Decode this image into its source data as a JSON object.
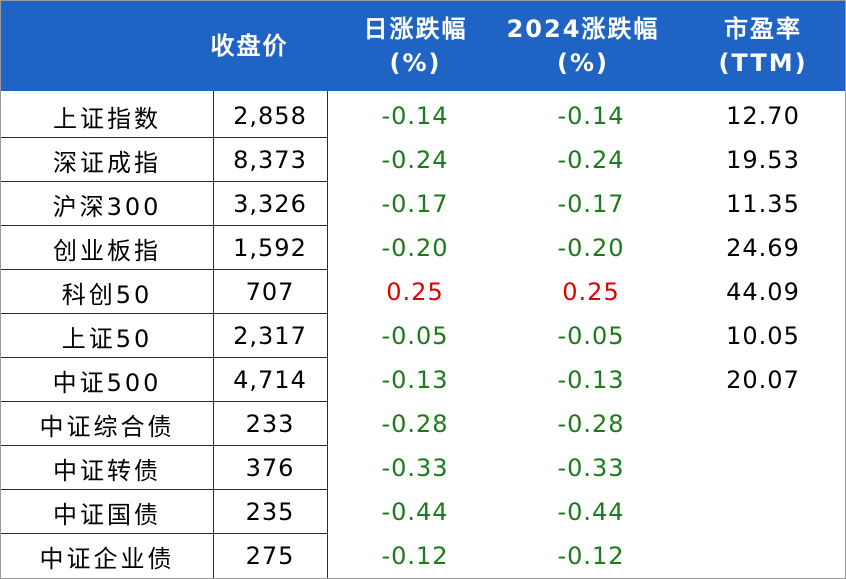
{
  "headers": {
    "close": [
      "收盘价"
    ],
    "daily": [
      "日涨跌幅",
      "(%)"
    ],
    "ytd": [
      "2024涨跌幅",
      "(%)"
    ],
    "pe": [
      "市盈率",
      "(TTM)"
    ]
  },
  "rows": [
    {
      "name": "上证指数",
      "close": "2,858",
      "daily": "-0.14",
      "ytd": "-0.14",
      "pe": "12.70",
      "dir": "neg"
    },
    {
      "name": "深证成指",
      "close": "8,373",
      "daily": "-0.24",
      "ytd": "-0.24",
      "pe": "19.53",
      "dir": "neg"
    },
    {
      "name": "沪深300",
      "close": "3,326",
      "daily": "-0.17",
      "ytd": "-0.17",
      "pe": "11.35",
      "dir": "neg"
    },
    {
      "name": "创业板指",
      "close": "1,592",
      "daily": "-0.20",
      "ytd": "-0.20",
      "pe": "24.69",
      "dir": "neg"
    },
    {
      "name": "科创50",
      "close": "707",
      "daily": "0.25",
      "ytd": "0.25",
      "pe": "44.09",
      "dir": "pos"
    },
    {
      "name": "上证50",
      "close": "2,317",
      "daily": "-0.05",
      "ytd": "-0.05",
      "pe": "10.05",
      "dir": "neg"
    },
    {
      "name": "中证500",
      "close": "4,714",
      "daily": "-0.13",
      "ytd": "-0.13",
      "pe": "20.07",
      "dir": "neg"
    },
    {
      "name": "中证综合债",
      "close": "233",
      "daily": "-0.28",
      "ytd": "-0.28",
      "pe": "",
      "dir": "neg"
    },
    {
      "name": "中证转债",
      "close": "376",
      "daily": "-0.33",
      "ytd": "-0.33",
      "pe": "",
      "dir": "neg"
    },
    {
      "name": "中证国债",
      "close": "235",
      "daily": "-0.44",
      "ytd": "-0.44",
      "pe": "",
      "dir": "neg"
    },
    {
      "name": "中证企业债",
      "close": "275",
      "daily": "-0.12",
      "ytd": "-0.12",
      "pe": "",
      "dir": "neg"
    }
  ],
  "colors": {
    "header_bg": "#1f64c4",
    "negative": "#1b7a1b",
    "positive": "#e00000"
  }
}
